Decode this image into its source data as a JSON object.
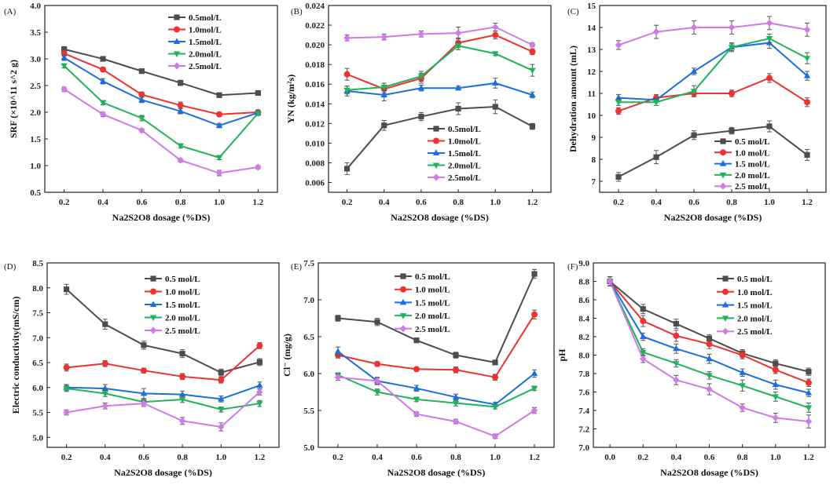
{
  "chart_data": [
    {
      "type": "line",
      "panel_label": "(A)",
      "title": "",
      "xlabel": "Na2S2O8 dosage (%DS)",
      "ylabel": "SRF (×10^11 s^2 g)",
      "xlim": [
        0.1,
        1.3
      ],
      "ylim": [
        0.5,
        4.0
      ],
      "x_ticks": [
        0.2,
        0.4,
        0.6,
        0.8,
        1.0,
        1.2
      ],
      "x_tick_labels": [
        "0.2",
        "0.4",
        "0.6",
        "0.8",
        "1.0",
        "1.2"
      ],
      "y_ticks": [
        0.5,
        1.0,
        1.5,
        2.0,
        2.5,
        3.0,
        3.5,
        4.0
      ],
      "y_tick_labels": [
        "0.5",
        "1.0",
        "1.5",
        "2.0",
        "2.5",
        "3.0",
        "3.5",
        "4.0"
      ],
      "legend_position": "top-right",
      "x": [
        0.2,
        0.4,
        0.6,
        0.8,
        1.0,
        1.2
      ],
      "series": [
        {
          "name": "0.5mol/L",
          "values": [
            3.18,
            3.0,
            2.77,
            2.55,
            2.32,
            2.36
          ],
          "errors": [
            0.05,
            0.03,
            0.04,
            0.05,
            0.04,
            0.03
          ]
        },
        {
          "name": "1.0mol/L",
          "values": [
            3.1,
            2.8,
            2.33,
            2.13,
            1.96,
            2.0
          ],
          "errors": [
            0.05,
            0.04,
            0.05,
            0.06,
            0.04,
            0.04
          ]
        },
        {
          "name": "1.5mol/L",
          "values": [
            3.02,
            2.58,
            2.23,
            2.02,
            1.75,
            1.99
          ],
          "errors": [
            0.05,
            0.05,
            0.05,
            0.05,
            0.04,
            0.04
          ]
        },
        {
          "name": "2.0mol/L",
          "values": [
            2.87,
            2.18,
            1.89,
            1.37,
            1.15,
            1.98
          ],
          "errors": [
            0.04,
            0.04,
            0.05,
            0.04,
            0.04,
            0.04
          ]
        },
        {
          "name": "2.5mol/L",
          "values": [
            2.43,
            1.96,
            1.66,
            1.1,
            0.86,
            0.97
          ],
          "errors": [
            0.04,
            0.04,
            0.03,
            0.03,
            0.05,
            0.03
          ]
        }
      ]
    },
    {
      "type": "line",
      "panel_label": "(B)",
      "title": "",
      "xlabel": "Na2S2O8 dosage (%DS)",
      "ylabel": "YN (kg/m²s)",
      "xlim": [
        0.1,
        1.3
      ],
      "ylim": [
        0.005,
        0.024
      ],
      "x_ticks": [
        0.2,
        0.4,
        0.6,
        0.8,
        1.0,
        1.2
      ],
      "x_tick_labels": [
        "0.2",
        "0.4",
        "0.6",
        "0.8",
        "1.0",
        "1.2"
      ],
      "y_ticks": [
        0.006,
        0.008,
        0.01,
        0.012,
        0.014,
        0.016,
        0.018,
        0.02,
        0.022,
        0.024
      ],
      "y_tick_labels": [
        "0.006",
        "0.008",
        "0.010",
        "0.012",
        "0.014",
        "0.016",
        "0.018",
        "0.020",
        "0.022",
        "0.024"
      ],
      "legend_position": "bottom-right",
      "x": [
        0.2,
        0.4,
        0.6,
        0.8,
        1.0,
        1.2
      ],
      "series": [
        {
          "name": "0.5mol/L",
          "values": [
            0.0074,
            0.0118,
            0.0127,
            0.0135,
            0.0137,
            0.0117
          ],
          "errors": [
            0.0006,
            0.0005,
            0.0004,
            0.0006,
            0.0007,
            0.0003
          ]
        },
        {
          "name": "1.0mol/L",
          "values": [
            0.017,
            0.0155,
            0.0166,
            0.0202,
            0.021,
            0.0193
          ],
          "errors": [
            0.0006,
            0.0004,
            0.0005,
            0.0005,
            0.0004,
            0.0003
          ]
        },
        {
          "name": "1.5mol/L",
          "values": [
            0.0153,
            0.0149,
            0.0156,
            0.0156,
            0.0161,
            0.0149
          ],
          "errors": [
            0.0005,
            0.0006,
            0.0003,
            0.0002,
            0.0005,
            0.0003
          ]
        },
        {
          "name": "2.0mol/L",
          "values": [
            0.0154,
            0.0157,
            0.0168,
            0.0199,
            0.0191,
            0.0174
          ],
          "errors": [
            0.0004,
            0.0004,
            0.0005,
            0.0004,
            0.0002,
            0.0006
          ]
        },
        {
          "name": "2.5mol/L",
          "values": [
            0.0207,
            0.0208,
            0.0211,
            0.0212,
            0.0218,
            0.02
          ],
          "errors": [
            0.0003,
            0.0003,
            0.0003,
            0.0006,
            0.0004,
            0.0002
          ]
        }
      ]
    },
    {
      "type": "line",
      "panel_label": "(C)",
      "title": "",
      "xlabel": "Na2S2O8 dosage (%DS)",
      "ylabel": "Dehydration amount (mL)",
      "xlim": [
        0.1,
        1.3
      ],
      "ylim": [
        6.5,
        15.0
      ],
      "x_ticks": [
        0.2,
        0.4,
        0.6,
        0.8,
        1.0,
        1.2
      ],
      "x_tick_labels": [
        "0.2",
        "0.4",
        "0.6",
        "0.8",
        "1.0",
        "1.2"
      ],
      "y_ticks": [
        7,
        8,
        9,
        10,
        11,
        12,
        13,
        14,
        15
      ],
      "y_tick_labels": [
        "7",
        "8",
        "9",
        "10",
        "11",
        "12",
        "13",
        "14",
        "15"
      ],
      "legend_position": "bottom-right",
      "x": [
        0.2,
        0.4,
        0.6,
        0.8,
        1.0,
        1.2
      ],
      "series": [
        {
          "name": "0.5 mol/L",
          "values": [
            7.2,
            8.1,
            9.1,
            9.3,
            9.5,
            8.2
          ],
          "errors": [
            0.2,
            0.3,
            0.2,
            0.15,
            0.25,
            0.25
          ]
        },
        {
          "name": "1.0 mol/L",
          "values": [
            10.2,
            10.8,
            11.0,
            11.0,
            11.7,
            10.6
          ],
          "errors": [
            0.15,
            0.15,
            0.15,
            0.15,
            0.2,
            0.2
          ]
        },
        {
          "name": "1.5 mol/L",
          "values": [
            10.8,
            10.7,
            12.0,
            13.1,
            13.3,
            11.8
          ],
          "errors": [
            0.15,
            0.1,
            0.15,
            0.2,
            0.25,
            0.2
          ]
        },
        {
          "name": "2.0 mol/L",
          "values": [
            10.6,
            10.6,
            11.1,
            13.1,
            13.5,
            12.6
          ],
          "errors": [
            0.15,
            0.15,
            0.25,
            0.15,
            0.2,
            0.25
          ]
        },
        {
          "name": "2.5 mol/L",
          "values": [
            13.2,
            13.8,
            14.0,
            14.0,
            14.2,
            13.9
          ],
          "errors": [
            0.2,
            0.3,
            0.3,
            0.3,
            0.3,
            0.3
          ]
        }
      ]
    },
    {
      "type": "line",
      "panel_label": "(D)",
      "title": "",
      "xlabel": "Na2S2O8 dosage (%DS)",
      "ylabel": "Electric conductivity(mS/cm)",
      "xlim": [
        0.1,
        1.3
      ],
      "ylim": [
        4.8,
        8.5
      ],
      "x_ticks": [
        0.2,
        0.4,
        0.6,
        0.8,
        1.0,
        1.2
      ],
      "x_tick_labels": [
        "0.2",
        "0.4",
        "0.6",
        "0.8",
        "1.0",
        "1.2"
      ],
      "y_ticks": [
        5.0,
        5.5,
        6.0,
        6.5,
        7.0,
        7.5,
        8.0,
        8.5
      ],
      "y_tick_labels": [
        "5.0",
        "5.5",
        "6.0",
        "6.5",
        "7.0",
        "7.5",
        "8.0",
        "8.5"
      ],
      "legend_position": "top-right",
      "x": [
        0.2,
        0.4,
        0.6,
        0.8,
        1.0,
        1.2
      ],
      "series": [
        {
          "name": "0.5 mol/L",
          "values": [
            7.97,
            7.27,
            6.85,
            6.68,
            6.3,
            6.51
          ],
          "errors": [
            0.1,
            0.1,
            0.08,
            0.08,
            0.07,
            0.07
          ]
        },
        {
          "name": "1.0 mol/L",
          "values": [
            6.4,
            6.48,
            6.34,
            6.22,
            6.15,
            6.84
          ],
          "errors": [
            0.07,
            0.06,
            0.05,
            0.06,
            0.06,
            0.06
          ]
        },
        {
          "name": "1.5 mol/L",
          "values": [
            6.0,
            5.98,
            5.88,
            5.86,
            5.77,
            6.04
          ],
          "errors": [
            0.06,
            0.08,
            0.1,
            0.07,
            0.06,
            0.07
          ]
        },
        {
          "name": "2.0 mol/L",
          "values": [
            5.98,
            5.88,
            5.71,
            5.76,
            5.56,
            5.68
          ],
          "errors": [
            0.06,
            0.06,
            0.06,
            0.06,
            0.05,
            0.06
          ]
        },
        {
          "name": "2.5 mol/L",
          "values": [
            5.5,
            5.63,
            5.68,
            5.33,
            5.21,
            5.91
          ],
          "errors": [
            0.05,
            0.06,
            0.06,
            0.07,
            0.08,
            0.06
          ]
        }
      ]
    },
    {
      "type": "line",
      "panel_label": "(E)",
      "title": "",
      "xlabel": "Na2S2O8 dosage (%DS)",
      "ylabel": "Cl⁻ (mg/g)",
      "xlim": [
        0.1,
        1.3
      ],
      "ylim": [
        5.0,
        7.5
      ],
      "x_ticks": [
        0.2,
        0.4,
        0.6,
        0.8,
        1.0,
        1.2
      ],
      "x_tick_labels": [
        "0.2",
        "0.4",
        "0.6",
        "0.8",
        "1.0",
        "1.2"
      ],
      "y_ticks": [
        5.0,
        5.5,
        6.0,
        6.5,
        7.0,
        7.5
      ],
      "y_tick_labels": [
        "5.0",
        "5.5",
        "6.0",
        "6.5",
        "7.0",
        "7.5"
      ],
      "legend_position": "top-center",
      "x": [
        0.2,
        0.4,
        0.6,
        0.8,
        1.0,
        1.2
      ],
      "series": [
        {
          "name": "0.5 mol/L",
          "values": [
            6.75,
            6.7,
            6.45,
            6.25,
            6.15,
            7.35
          ],
          "errors": [
            0.04,
            0.05,
            0.03,
            0.04,
            0.03,
            0.06
          ]
        },
        {
          "name": "1.0 mol/L",
          "values": [
            6.25,
            6.13,
            6.06,
            6.05,
            5.95,
            6.8
          ],
          "errors": [
            0.04,
            0.03,
            0.02,
            0.04,
            0.04,
            0.06
          ]
        },
        {
          "name": "1.5 mol/L",
          "values": [
            6.3,
            5.9,
            5.8,
            5.68,
            5.58,
            6.0
          ],
          "errors": [
            0.06,
            0.05,
            0.04,
            0.04,
            0.03,
            0.05
          ]
        },
        {
          "name": "2.0 mol/L",
          "values": [
            5.98,
            5.75,
            5.65,
            5.6,
            5.55,
            5.8
          ],
          "errors": [
            0.03,
            0.04,
            0.03,
            0.04,
            0.03,
            0.03
          ]
        },
        {
          "name": "2.5 mol/L",
          "values": [
            5.95,
            5.9,
            5.45,
            5.35,
            5.15,
            5.5
          ],
          "errors": [
            0.04,
            0.04,
            0.03,
            0.03,
            0.03,
            0.04
          ]
        }
      ]
    },
    {
      "type": "line",
      "panel_label": "(F)",
      "title": "",
      "xlabel": "Na2S2O8 dosage (%DS)",
      "ylabel": "pH",
      "xlim": [
        -0.1,
        1.3
      ],
      "ylim": [
        7.0,
        9.0
      ],
      "x_ticks": [
        0.0,
        0.2,
        0.4,
        0.6,
        0.8,
        1.0,
        1.2
      ],
      "x_tick_labels": [
        "0.0",
        "0.2",
        "0.4",
        "0.6",
        "0.8",
        "1.0",
        "1.2"
      ],
      "y_ticks": [
        7.0,
        7.2,
        7.4,
        7.6,
        7.8,
        8.0,
        8.2,
        8.4,
        8.6,
        8.8,
        9.0
      ],
      "y_tick_labels": [
        "7.0",
        "7.2",
        "7.4",
        "7.6",
        "7.8",
        "8.0",
        "8.2",
        "8.4",
        "8.6",
        "8.8",
        "9.0"
      ],
      "legend_position": "top-right",
      "x": [
        0.0,
        0.2,
        0.4,
        0.6,
        0.8,
        1.0,
        1.2
      ],
      "series": [
        {
          "name": "0.5 mol/L",
          "values": [
            8.8,
            8.5,
            8.34,
            8.18,
            8.02,
            7.91,
            7.82
          ],
          "errors": [
            0.05,
            0.05,
            0.05,
            0.04,
            0.04,
            0.04,
            0.04
          ]
        },
        {
          "name": "1.0 mol/L",
          "values": [
            8.8,
            8.37,
            8.21,
            8.12,
            8.0,
            7.84,
            7.7
          ],
          "errors": [
            0.05,
            0.06,
            0.06,
            0.05,
            0.04,
            0.04,
            0.04
          ]
        },
        {
          "name": "1.5 mol/L",
          "values": [
            8.8,
            8.2,
            8.07,
            7.96,
            7.81,
            7.68,
            7.59
          ],
          "errors": [
            0.05,
            0.04,
            0.05,
            0.05,
            0.04,
            0.05,
            0.04
          ]
        },
        {
          "name": "2.0 mol/L",
          "values": [
            8.8,
            8.03,
            7.91,
            7.78,
            7.67,
            7.55,
            7.43
          ],
          "errors": [
            0.05,
            0.04,
            0.04,
            0.04,
            0.06,
            0.05,
            0.05
          ]
        },
        {
          "name": "2.5 mol/L",
          "values": [
            8.8,
            7.96,
            7.73,
            7.63,
            7.43,
            7.32,
            7.28
          ],
          "errors": [
            0.05,
            0.04,
            0.05,
            0.06,
            0.04,
            0.05,
            0.07
          ]
        }
      ]
    }
  ],
  "style": {
    "series_colors": [
      "#4d4d4d",
      "#ee3131",
      "#1a6ee0",
      "#1fb35a",
      "#cf7ae8"
    ],
    "series_markers": [
      "square",
      "circle",
      "triangle-up",
      "triangle-down",
      "diamond"
    ],
    "axis_color": "#222222",
    "errorbar_color": "#555555"
  }
}
